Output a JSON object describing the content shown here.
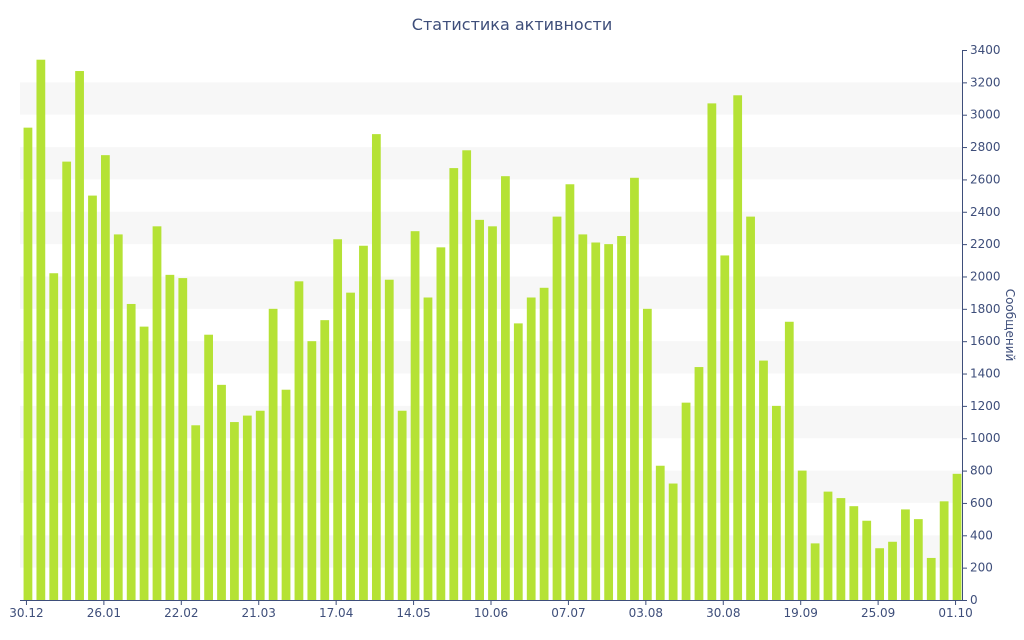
{
  "chart_data": {
    "type": "bar",
    "title": "Статистика активности",
    "ylabel": "Сообщений",
    "xlabel": "",
    "ylim": [
      0,
      3400
    ],
    "y_ticks": [
      0,
      200,
      400,
      600,
      800,
      1000,
      1200,
      1400,
      1600,
      1800,
      2000,
      2200,
      2400,
      2600,
      2800,
      3000,
      3200,
      3400
    ],
    "x_tick_labels": [
      {
        "index": 0,
        "label": "30.12"
      },
      {
        "index": 6,
        "label": "26.01"
      },
      {
        "index": 12,
        "label": "22.02"
      },
      {
        "index": 18,
        "label": "21.03"
      },
      {
        "index": 24,
        "label": "17.04"
      },
      {
        "index": 30,
        "label": "14.05"
      },
      {
        "index": 36,
        "label": "10.06"
      },
      {
        "index": 42,
        "label": "07.07"
      },
      {
        "index": 48,
        "label": "03.08"
      },
      {
        "index": 54,
        "label": "30.08"
      },
      {
        "index": 60,
        "label": "19.09"
      },
      {
        "index": 66,
        "label": "25.09"
      },
      {
        "index": 72,
        "label": "01.10"
      }
    ],
    "y_axis_position": "right",
    "grid": "alternating horizontal bands",
    "values": [
      2920,
      3340,
      2020,
      2710,
      3270,
      2500,
      2750,
      2260,
      1830,
      1690,
      2310,
      2010,
      1990,
      1080,
      1640,
      1330,
      1100,
      1140,
      1170,
      1800,
      1300,
      1970,
      1600,
      1730,
      2230,
      1900,
      2190,
      2880,
      1980,
      1170,
      2280,
      1870,
      2180,
      2670,
      2780,
      2350,
      2310,
      2620,
      1710,
      1870,
      1930,
      2370,
      2570,
      2260,
      2210,
      2200,
      2250,
      2610,
      1800,
      830,
      720,
      1220,
      1440,
      3070,
      2130,
      3120,
      2370,
      1480,
      1200,
      1720,
      800,
      350,
      670,
      630,
      580,
      490,
      320,
      360,
      560,
      500,
      260,
      610,
      780
    ],
    "colors": {
      "bar": "#b5e235",
      "axis": "#3e4e7a",
      "text": "#3e4e7a",
      "band": "#f7f7f7"
    }
  }
}
